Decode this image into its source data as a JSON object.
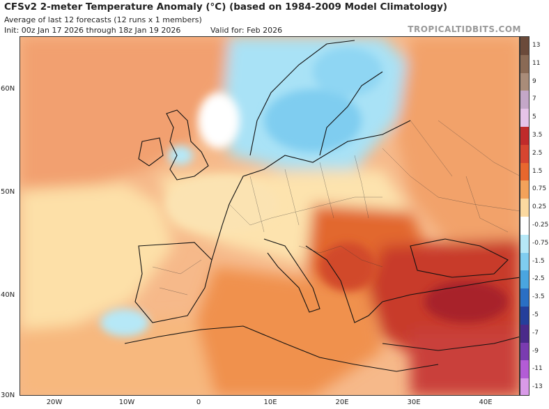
{
  "header": {
    "title": "CFSv2 2-meter Temperature Anomaly (°C) (based on 1984-2009 Model Climatology)",
    "subtitle": "Average of last 12 forecasts (12 runs x 1 members)",
    "init": "Init: 00z Jan 17 2026 through 18z Jan 19 2026",
    "valid": "Valid for: Feb 2026",
    "brand": "TROPICALTIDBITS.COM"
  },
  "axes": {
    "lat_labels": [
      "60N",
      "50N",
      "40N",
      "30N"
    ],
    "lon_labels": [
      "20W",
      "10W",
      "0",
      "10E",
      "20E",
      "30E",
      "40E"
    ]
  },
  "colorbar": {
    "labels": [
      "13",
      "11",
      "9",
      "7",
      "5",
      "3.5",
      "2.5",
      "1.5",
      "0.75",
      "0.25",
      "-0.25",
      "-0.75",
      "-1.5",
      "-2.5",
      "-3.5",
      "-5",
      "-7",
      "-9",
      "-11",
      "-13"
    ],
    "colors": [
      "#6b4a3a",
      "#8a6a55",
      "#a98c79",
      "#c4a7c8",
      "#e6c3e8",
      "#c02b2b",
      "#d64530",
      "#e8672e",
      "#f3a25a",
      "#fbd9a0",
      "#ffffff",
      "#b6e8f7",
      "#7fcdf0",
      "#4aa5e0",
      "#2a6fc4",
      "#253f9b",
      "#4a2a8a",
      "#7a3cb0",
      "#b35cd6",
      "#d99ae8"
    ]
  },
  "map": {
    "anomaly_fields": [
      {
        "region": "scandinavia",
        "sign": "cold",
        "level": "-0.75"
      },
      {
        "region": "balkans",
        "sign": "warm",
        "level": "2.5"
      },
      {
        "region": "turkey",
        "sign": "warm",
        "level": "3.5"
      },
      {
        "region": "atlantic-north",
        "sign": "warm",
        "level": "1.5"
      },
      {
        "region": "iberia",
        "sign": "warm",
        "level": "0.25"
      }
    ]
  }
}
